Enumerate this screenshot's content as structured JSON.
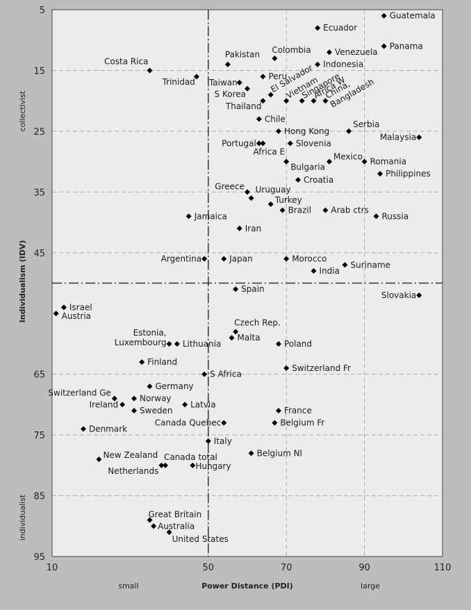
{
  "chart_data": {
    "type": "scatter",
    "xlabel": "Power Distance (PDI)",
    "ylabel": "Individualism (IDV)",
    "x_left_label": "small",
    "x_right_label": "large",
    "y_top_label": "collectivist",
    "y_bottom_label": "individualist",
    "xlim": [
      10,
      110
    ],
    "ylim": [
      5,
      95
    ],
    "y_inverted": true,
    "x_ticks": [
      10,
      50,
      70,
      90,
      110
    ],
    "y_ticks": [
      5,
      15,
      25,
      35,
      45,
      65,
      75,
      85,
      95
    ],
    "grid": "dashed",
    "reference_lines": {
      "x": 50,
      "y": 50
    },
    "colors": {
      "background": "#bdbdbd",
      "plot_area": "#ececec",
      "marker": "#000000",
      "grid": "#a8a8a8"
    },
    "points": [
      {
        "label": "Guatemala",
        "x": 95,
        "y": 6
      },
      {
        "label": "Ecuador",
        "x": 78,
        "y": 8
      },
      {
        "label": "Panama",
        "x": 95,
        "y": 11
      },
      {
        "label": "Venezuela",
        "x": 81,
        "y": 12
      },
      {
        "label": "Colombia",
        "x": 67,
        "y": 13
      },
      {
        "label": "Indonesia",
        "x": 78,
        "y": 14
      },
      {
        "label": "Pakistan",
        "x": 55,
        "y": 14
      },
      {
        "label": "Costa Rica",
        "x": 35,
        "y": 15
      },
      {
        "label": "Peru",
        "x": 64,
        "y": 16
      },
      {
        "label": "Trinidad",
        "x": 47,
        "y": 16
      },
      {
        "label": "Taiwan",
        "x": 58,
        "y": 17
      },
      {
        "label": "S Korea",
        "x": 60,
        "y": 18
      },
      {
        "label": "El Salvador",
        "x": 66,
        "y": 19
      },
      {
        "label": "Vietnam",
        "x": 70,
        "y": 20
      },
      {
        "label": "Singapore",
        "x": 74,
        "y": 20
      },
      {
        "label": "Africa W",
        "x": 77,
        "y": 20
      },
      {
        "label": "China, Bangladesh",
        "x": 80,
        "y": 20
      },
      {
        "label": "Thailand",
        "x": 64,
        "y": 20
      },
      {
        "label": "Chile",
        "x": 63,
        "y": 23
      },
      {
        "label": "Hong Kong",
        "x": 68,
        "y": 25
      },
      {
        "label": "Serbia",
        "x": 86,
        "y": 25
      },
      {
        "label": "Malaysia",
        "x": 104,
        "y": 26
      },
      {
        "label": "Portugal",
        "x": 63,
        "y": 27
      },
      {
        "label": "Africa E",
        "x": 64,
        "y": 27
      },
      {
        "label": "Slovenia",
        "x": 71,
        "y": 27
      },
      {
        "label": "Mexico",
        "x": 81,
        "y": 30
      },
      {
        "label": "Romania",
        "x": 90,
        "y": 30
      },
      {
        "label": "Bulgaria",
        "x": 70,
        "y": 30
      },
      {
        "label": "Philippines",
        "x": 94,
        "y": 32
      },
      {
        "label": "Croatia",
        "x": 73,
        "y": 33
      },
      {
        "label": "Greece",
        "x": 60,
        "y": 35
      },
      {
        "label": "Uruguay",
        "x": 61,
        "y": 36
      },
      {
        "label": "Turkey",
        "x": 66,
        "y": 37
      },
      {
        "label": "Arab ctrs",
        "x": 80,
        "y": 38
      },
      {
        "label": "Brazil",
        "x": 69,
        "y": 38
      },
      {
        "label": "Russia",
        "x": 93,
        "y": 39
      },
      {
        "label": "Jamaica",
        "x": 45,
        "y": 39
      },
      {
        "label": "Iran",
        "x": 58,
        "y": 41
      },
      {
        "label": "Argentina",
        "x": 49,
        "y": 46
      },
      {
        "label": "Japan",
        "x": 54,
        "y": 46
      },
      {
        "label": "Morocco",
        "x": 70,
        "y": 46
      },
      {
        "label": "Suriname",
        "x": 85,
        "y": 47
      },
      {
        "label": "India",
        "x": 77,
        "y": 48
      },
      {
        "label": "Spain",
        "x": 57,
        "y": 51
      },
      {
        "label": "Slovakia",
        "x": 104,
        "y": 52
      },
      {
        "label": "Israel",
        "x": 13,
        "y": 54
      },
      {
        "label": "Austria",
        "x": 11,
        "y": 55
      },
      {
        "label": "Czech Rep.",
        "x": 57,
        "y": 58
      },
      {
        "label": "Malta",
        "x": 56,
        "y": 59
      },
      {
        "label": "Estonia, Luxembourg",
        "x": 40,
        "y": 60
      },
      {
        "label": "Lithuania",
        "x": 42,
        "y": 60
      },
      {
        "label": "Poland",
        "x": 68,
        "y": 60
      },
      {
        "label": "Finland",
        "x": 33,
        "y": 63
      },
      {
        "label": "Switzerland Fr",
        "x": 70,
        "y": 64
      },
      {
        "label": "S Africa",
        "x": 49,
        "y": 65
      },
      {
        "label": "Germany",
        "x": 35,
        "y": 67
      },
      {
        "label": "Switzerland Ge",
        "x": 26,
        "y": 69
      },
      {
        "label": "Norway",
        "x": 31,
        "y": 69
      },
      {
        "label": "Ireland",
        "x": 28,
        "y": 70
      },
      {
        "label": "Latvia",
        "x": 44,
        "y": 70
      },
      {
        "label": "Sweden",
        "x": 31,
        "y": 71
      },
      {
        "label": "France",
        "x": 68,
        "y": 71
      },
      {
        "label": "Canada Quebec",
        "x": 54,
        "y": 73
      },
      {
        "label": "Belgium Fr",
        "x": 67,
        "y": 73
      },
      {
        "label": "Denmark",
        "x": 18,
        "y": 74
      },
      {
        "label": "Italy",
        "x": 50,
        "y": 76
      },
      {
        "label": "Belgium Nl",
        "x": 61,
        "y": 78
      },
      {
        "label": "New Zealand",
        "x": 22,
        "y": 79
      },
      {
        "label": "Canada total",
        "x": 39,
        "y": 80
      },
      {
        "label": "Netherlands",
        "x": 38,
        "y": 80
      },
      {
        "label": "Hungary",
        "x": 46,
        "y": 80
      },
      {
        "label": "Great Britain",
        "x": 35,
        "y": 89
      },
      {
        "label": "Australia",
        "x": 36,
        "y": 90
      },
      {
        "label": "United States",
        "x": 40,
        "y": 91
      }
    ]
  }
}
